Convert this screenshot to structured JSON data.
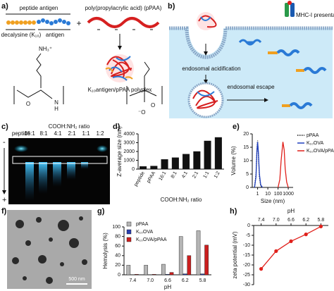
{
  "panel_labels": [
    "a)",
    "b)",
    "c)",
    "d)",
    "e)",
    "f)",
    "g)",
    "h)"
  ],
  "diagram_a": {
    "peptide": "peptide antigen",
    "polymer": "poly(propylacrylic acid) (pPAA)",
    "decalysine": "decalysine (K₁₀)",
    "antigen": "antigen",
    "plus": "+",
    "polyplex": "K₁₀antigen/pPAA polyplex",
    "amine": "NH₃⁺",
    "nh": "N",
    "h": "H",
    "o1": "O",
    "o2": "O",
    "om": "⁻O"
  },
  "diagram_b": {
    "mhc": "MHC-I presentation",
    "acid": "endosomal acidification",
    "escape": "endosomal escape"
  },
  "gel": {
    "peptide": "peptide",
    "ratio_title": "COOH:NH₂ ratio",
    "lanes": [
      "16:1",
      "8:1",
      "4:1",
      "2:1",
      "1:1",
      "1:2"
    ],
    "minus": "-",
    "plus": "+"
  },
  "micrograph": {
    "scale": "500 nm"
  },
  "chart_data": [
    {
      "type": "bar",
      "y_label": "Z-average size (nm)",
      "x_label": "COOH:NH₂ ratio",
      "categories": [
        "peptide",
        "pPAA",
        "16:1",
        "8:1",
        "4:1",
        "2:1",
        "1:1",
        "1:2"
      ],
      "values": [
        300,
        350,
        1100,
        1300,
        1700,
        2000,
        3200,
        3600
      ],
      "color": "#111111",
      "ylim": [
        0,
        4000
      ],
      "yticks": [
        0,
        1000,
        2000,
        3000,
        4000
      ]
    },
    {
      "type": "line",
      "y_label": "Volume (%)",
      "x_label": "Size (nm)",
      "xlog": true,
      "xlim": [
        0.3,
        3000
      ],
      "xticks": [
        1,
        10,
        100,
        1000
      ],
      "ylim": [
        0,
        20
      ],
      "yticks": [
        0,
        5,
        10,
        15,
        20
      ],
      "legend": "right",
      "series": [
        {
          "name": "pPAA",
          "color": "#111111",
          "dash": "1.5,1.5",
          "x": [
            0.5,
            0.7,
            0.85,
            1,
            1.2,
            1.5,
            2,
            3
          ],
          "values": [
            0,
            5,
            14,
            17.5,
            12,
            4,
            0.5,
            0
          ]
        },
        {
          "name": "K₁₀OVA",
          "color": "#1f3fbf",
          "x": [
            0.5,
            0.7,
            0.85,
            1,
            1.2,
            1.5,
            2,
            3
          ],
          "values": [
            0,
            4,
            13,
            17,
            13,
            5,
            1,
            0
          ]
        },
        {
          "name": "K₁₀OVA/pPAA",
          "color": "#e0201b",
          "x": [
            100,
            150,
            200,
            300,
            400,
            500,
            700,
            1000
          ],
          "values": [
            0,
            3,
            10,
            17,
            14,
            7,
            2,
            0
          ]
        }
      ]
    },
    {
      "type": "bar",
      "y_label": "Hemolysis (%)",
      "x_label": "pH",
      "categories": [
        "7.4",
        "7.0",
        "6.6",
        "6.2",
        "5.8"
      ],
      "ylim": [
        0,
        100
      ],
      "yticks": [
        0,
        20,
        40,
        60,
        80,
        100
      ],
      "legend": "upper left",
      "series": [
        {
          "name": "pPAA",
          "color": "#b5b5b5",
          "values": [
            20,
            20,
            22,
            80,
            92
          ]
        },
        {
          "name": "K₁₀OVA",
          "color": "#2a3fb0",
          "values": [
            0,
            0,
            1,
            2,
            2
          ]
        },
        {
          "name": "K₁₀OVA/pPAA",
          "color": "#cc1f1f",
          "values": [
            1,
            1,
            5,
            40,
            62
          ]
        }
      ]
    },
    {
      "type": "line",
      "y_label": "zeta potential (mV)",
      "x_label": "pH",
      "xaxis": "top",
      "markers": true,
      "xlim": [
        7.6,
        5.6
      ],
      "xticks": [
        7.4,
        {
          "value": 7,
          "label": "7.0"
        },
        6.6,
        6.2,
        5.8
      ],
      "ylim": [
        -30,
        0
      ],
      "yticks": [
        0,
        -5,
        -10,
        -15,
        -20,
        -25,
        -30
      ],
      "x": [
        7.4,
        7,
        6.6,
        6.2,
        5.8
      ],
      "series": [
        {
          "color": "#e0201b",
          "values": [
            -22,
            -13,
            -8,
            -4.5,
            -0.5
          ]
        }
      ]
    }
  ]
}
